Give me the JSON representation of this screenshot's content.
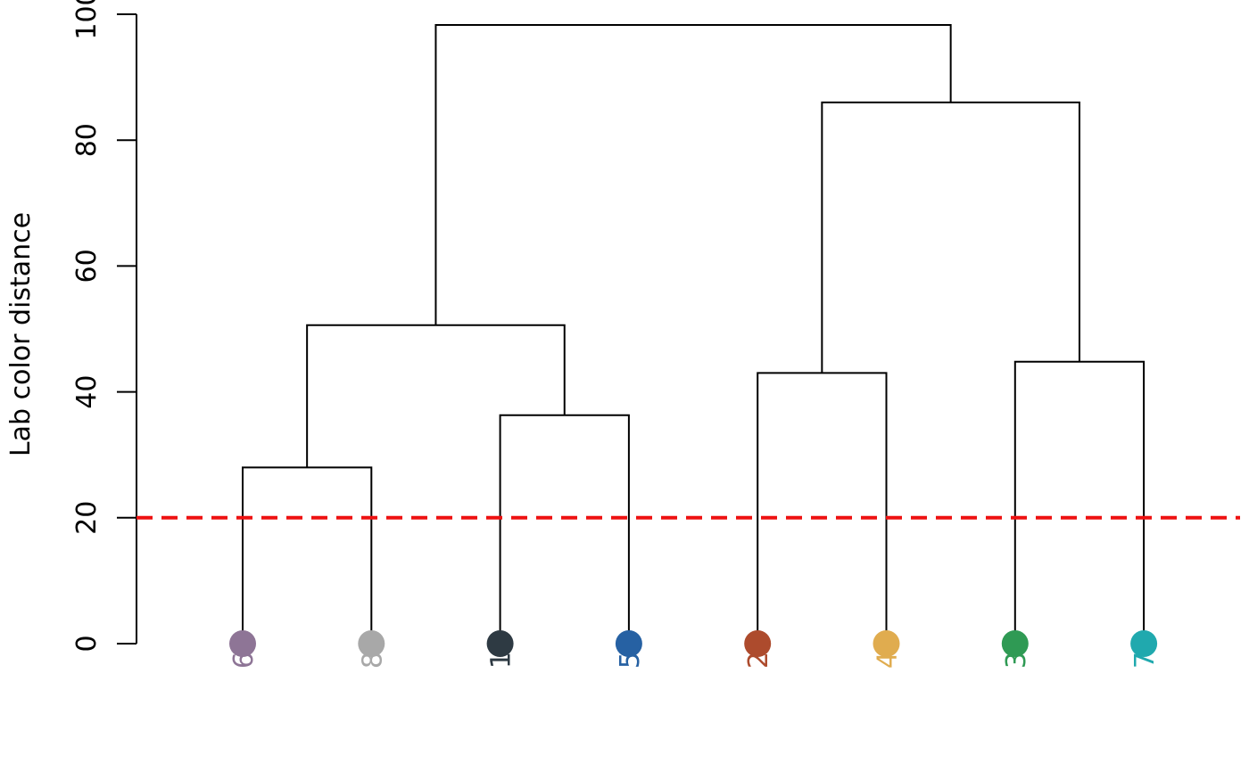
{
  "chart_data": {
    "type": "dendrogram",
    "ylabel": "Lab color distance",
    "ylim": [
      0,
      100
    ],
    "yticks": [
      0,
      20,
      40,
      60,
      80,
      100
    ],
    "cut_height": 20,
    "cut_color": "#ee1111",
    "leaves": [
      {
        "label": "6",
        "color": "#8e7596"
      },
      {
        "label": "8",
        "color": "#a8a8a8"
      },
      {
        "label": "1",
        "color": "#2e3a43"
      },
      {
        "label": "5",
        "color": "#2661a3"
      },
      {
        "label": "2",
        "color": "#ad4b2d"
      },
      {
        "label": "4",
        "color": "#e0ac4f"
      },
      {
        "label": "3",
        "color": "#2f9a54"
      },
      {
        "label": "7",
        "color": "#20a9ae"
      }
    ],
    "merges": [
      {
        "left": "6",
        "right": "8",
        "height": 28
      },
      {
        "left": "1",
        "right": "5",
        "height": 36.3
      },
      {
        "left": "2",
        "right": "4",
        "height": 43
      },
      {
        "left": "3",
        "right": "7",
        "height": 44.8
      },
      {
        "left": "6,8",
        "right": "1,5",
        "height": 50.6
      },
      {
        "left": "2,4",
        "right": "3,7",
        "height": 86
      },
      {
        "left": "6,8,1,5",
        "right": "2,4,3,7",
        "height": 98.3
      }
    ]
  }
}
